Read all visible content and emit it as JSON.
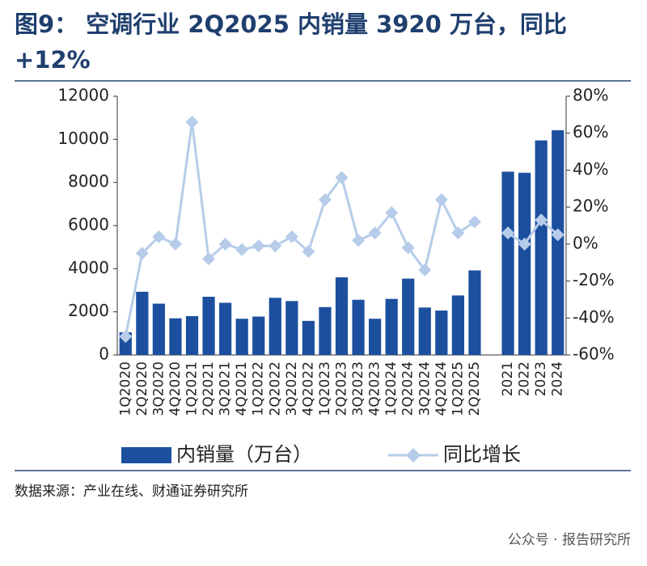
{
  "chart_data": {
    "type": "bar_line",
    "title": "图9： 空调行业 2Q2025 内销量 3920 万台，同比+12%",
    "source": "数据来源：产业在线、财通证券研究所",
    "watermark": "公众号 · 报告研究所",
    "categories": [
      "1Q2020",
      "2Q2020",
      "3Q2020",
      "4Q2020",
      "1Q2021",
      "2Q2021",
      "3Q2021",
      "4Q2021",
      "1Q2022",
      "2Q2022",
      "3Q2022",
      "4Q2022",
      "1Q2023",
      "2Q2023",
      "3Q2023",
      "4Q2023",
      "1Q2024",
      "2Q2024",
      "3Q2024",
      "4Q2024",
      "1Q2025",
      "2Q2025",
      null,
      "2021",
      "2022",
      "2023",
      "2024"
    ],
    "series": [
      {
        "name": "内销量（万台）",
        "color": "#1c4f9e",
        "type": "bar",
        "values": [
          1050,
          2930,
          2380,
          1700,
          1800,
          2700,
          2420,
          1680,
          1780,
          2650,
          2500,
          1580,
          2220,
          3600,
          2560,
          1680,
          2600,
          3540,
          2200,
          2060,
          2760,
          3920,
          null,
          8500,
          8450,
          9950,
          10420
        ]
      },
      {
        "name": "同比增长",
        "color": "#b6cce9",
        "type": "line",
        "axis": "y2",
        "values": [
          -50,
          -5,
          4,
          0,
          66,
          -8,
          0,
          -3,
          -1,
          -1,
          4,
          -4,
          24,
          36,
          2,
          6,
          17,
          -2,
          -14,
          24,
          6,
          12,
          null,
          6,
          0,
          13,
          5
        ]
      }
    ],
    "ylim": [
      0,
      12000
    ],
    "yticks": [
      0,
      2000,
      4000,
      6000,
      8000,
      10000,
      12000
    ],
    "y2lim": [
      -60,
      80
    ],
    "y2ticks": [
      {
        "value": -60,
        "label": "-60%"
      },
      {
        "value": -40,
        "label": "-40%"
      },
      {
        "value": -20,
        "label": "-20%"
      },
      {
        "value": 0,
        "label": "0%"
      },
      {
        "value": 20,
        "label": "20%"
      },
      {
        "value": 40,
        "label": "40%"
      },
      {
        "value": 60,
        "label": "60%"
      },
      {
        "value": 80,
        "label": "80%"
      }
    ],
    "legend": "bottom"
  }
}
